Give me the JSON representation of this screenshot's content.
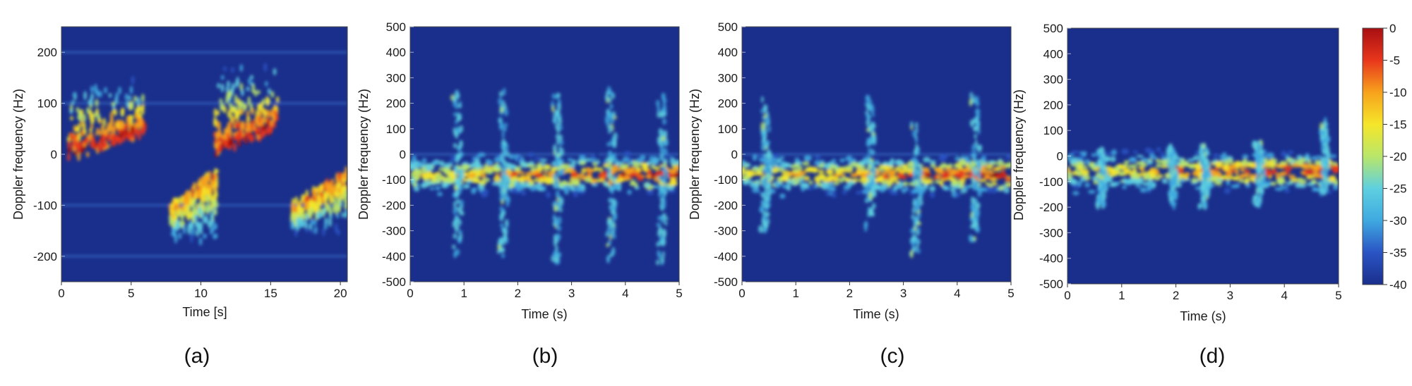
{
  "colors": {
    "background": "#1a2f8c",
    "colormap": [
      "#1a2f8c",
      "#2a54c4",
      "#3fa9e0",
      "#5ed0e0",
      "#b9e66a",
      "#f5e62a",
      "#f7a21c",
      "#e8361c",
      "#a80f12"
    ]
  },
  "colorbar": {
    "ticks": [
      0,
      -5,
      -10,
      -15,
      -20,
      -25,
      -30,
      -35,
      -40
    ],
    "range": [
      -40,
      0
    ]
  },
  "chart_data": [
    {
      "type": "heatmap",
      "caption": "(a)",
      "xlabel": "Time [s]",
      "ylabel": "Doppler frequency (Hz)",
      "xlim": [
        0,
        20.5
      ],
      "ylim": [
        -250,
        250
      ],
      "xticks": [
        0,
        5,
        10,
        15,
        20
      ],
      "yticks": [
        200,
        100,
        0,
        -100,
        -200
      ],
      "hlines": [
        200,
        100,
        -100,
        -200
      ],
      "features": [
        {
          "t0": 0.5,
          "t1": 6.0,
          "f_base": [
            0,
            50
          ],
          "f_peak": 140,
          "intensity": -3
        },
        {
          "t0": 7.8,
          "t1": 11.2,
          "f_base": [
            -110,
            -40
          ],
          "f_peak": -170,
          "intensity": -10
        },
        {
          "t0": 11.0,
          "t1": 15.5,
          "f_base": [
            10,
            60
          ],
          "f_peak": 170,
          "intensity": -3
        },
        {
          "t0": 16.5,
          "t1": 20.5,
          "f_base": [
            -110,
            -40
          ],
          "f_peak": -150,
          "intensity": -8
        }
      ]
    },
    {
      "type": "heatmap",
      "caption": "(b)",
      "xlabel": "Time (s)",
      "ylabel": "Doppler frequency (Hz)",
      "xlim": [
        0,
        5
      ],
      "ylim": [
        -500,
        500
      ],
      "xticks": [
        0,
        1,
        2,
        3,
        4,
        5
      ],
      "yticks": [
        500,
        400,
        300,
        200,
        100,
        0,
        -100,
        -200,
        -300,
        -400,
        -500
      ],
      "band_center": -80,
      "hlines": [
        0
      ],
      "strides": [
        {
          "t": 0.85,
          "f_max": 250,
          "f_min": -400
        },
        {
          "t": 1.7,
          "f_max": 250,
          "f_min": -400
        },
        {
          "t": 2.7,
          "f_max": 250,
          "f_min": -420
        },
        {
          "t": 3.7,
          "f_max": 260,
          "f_min": -420
        },
        {
          "t": 4.65,
          "f_max": 270,
          "f_min": -430
        }
      ]
    },
    {
      "type": "heatmap",
      "caption": "(c)",
      "xlabel": "Time (s)",
      "ylabel": "Doppler frequency (Hz)",
      "xlim": [
        0,
        5
      ],
      "ylim": [
        -500,
        500
      ],
      "xticks": [
        0,
        1,
        2,
        3,
        4,
        5
      ],
      "yticks": [
        500,
        400,
        300,
        200,
        100,
        0,
        -100,
        -200,
        -300,
        -400,
        -500
      ],
      "band_center": -80,
      "hlines": [
        0
      ],
      "strides": [
        {
          "t": 0.4,
          "f_max": 220,
          "f_min": -300
        },
        {
          "t": 2.35,
          "f_max": 220,
          "f_min": -300
        },
        {
          "t": 3.2,
          "f_max": 120,
          "f_min": -400
        },
        {
          "t": 4.3,
          "f_max": 250,
          "f_min": -350
        }
      ]
    },
    {
      "type": "heatmap",
      "caption": "(d)",
      "xlabel": "Time (s)",
      "ylabel": "Doppler frequency (Hz)",
      "xlim": [
        0,
        5
      ],
      "ylim": [
        -500,
        500
      ],
      "xticks": [
        0,
        1,
        2,
        3,
        4,
        5
      ],
      "yticks": [
        500,
        400,
        300,
        200,
        100,
        0,
        -100,
        -200,
        -300,
        -400,
        -500
      ],
      "band_center": -60,
      "hlines": [],
      "strides": [
        {
          "t": 0.6,
          "f_max": 30,
          "f_min": -200
        },
        {
          "t": 1.9,
          "f_max": 40,
          "f_min": -200
        },
        {
          "t": 2.5,
          "f_max": 40,
          "f_min": -200
        },
        {
          "t": 3.5,
          "f_max": 60,
          "f_min": -190
        },
        {
          "t": 4.7,
          "f_max": 150,
          "f_min": -150
        }
      ]
    }
  ]
}
